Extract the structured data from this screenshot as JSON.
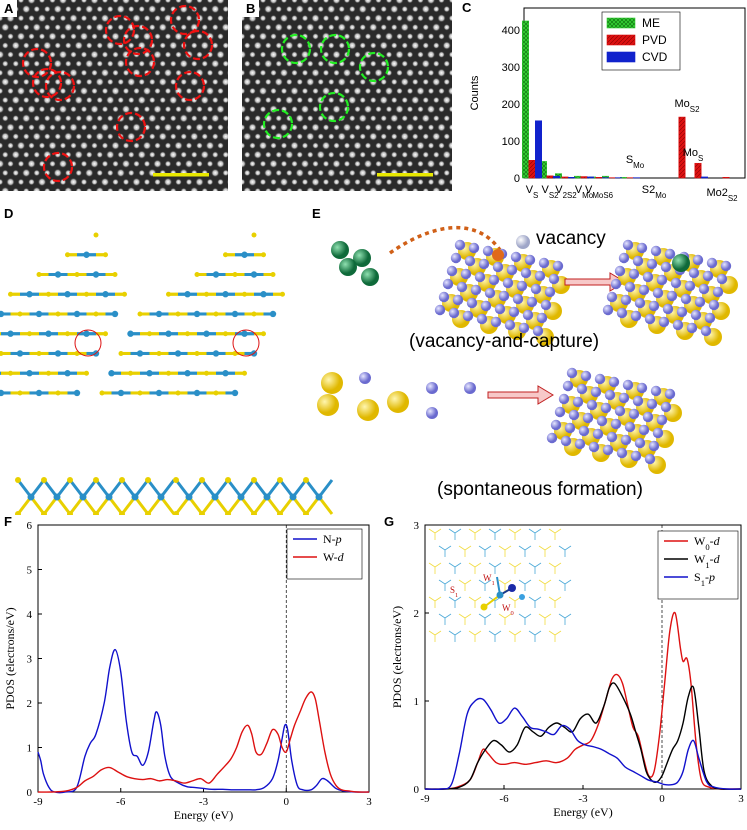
{
  "panels": {
    "A": {
      "label": "A"
    },
    "B": {
      "label": "B"
    },
    "C": {
      "label": "C"
    },
    "D": {
      "label": "D"
    },
    "E": {
      "label": "E"
    },
    "F": {
      "label": "F"
    },
    "G": {
      "label": "G"
    }
  },
  "panelE": {
    "vacancy_label": "vacancy",
    "capture_caption": "(vacancy-and-capture)",
    "formation_caption": "(spontaneous formation)"
  },
  "colors": {
    "ME": "#33cc33",
    "PVD": "#dd1111",
    "CVD": "#1122cc",
    "np": "#1111cc",
    "wd": "#dd1111",
    "w1d": "#000000",
    "s1p": "#1111cc"
  },
  "chart_data": [
    {
      "id": "C",
      "type": "bar",
      "ylabel": "Counts",
      "ylim": [
        0,
        460
      ],
      "yticks": [
        0,
        100,
        200,
        300,
        400
      ],
      "categories": [
        "VS",
        "VS2",
        "V2S2",
        "VMo",
        "VMoS6",
        "SMo",
        "S2Mo",
        "MoS2",
        "MoS",
        "Mo2S2"
      ],
      "category_labels": [
        {
          "base": "V",
          "sub": "S"
        },
        {
          "base": "V",
          "sub": "S2"
        },
        {
          "base": "V",
          "sub": "2S2"
        },
        {
          "base": "V",
          "sub": "Mo"
        },
        {
          "base": "V",
          "sub": "MoS6"
        },
        {
          "base": "S",
          "sub": "Mo"
        },
        {
          "base": "S2",
          "sub": "Mo"
        },
        {
          "base": "Mo",
          "sub": "S2"
        },
        {
          "base": "Mo",
          "sub": "S"
        },
        {
          "base": "Mo2",
          "sub": "S2"
        }
      ],
      "series": [
        {
          "name": "ME",
          "values": [
            425,
            45,
            12,
            5,
            3,
            5,
            2,
            0,
            0,
            0
          ]
        },
        {
          "name": "PVD",
          "values": [
            48,
            6,
            3,
            4,
            2,
            1,
            1,
            165,
            40,
            2
          ]
        },
        {
          "name": "CVD",
          "values": [
            155,
            5,
            2,
            3,
            1,
            1,
            1,
            0,
            3,
            0
          ]
        }
      ]
    },
    {
      "id": "F",
      "type": "line",
      "xlabel": "Energy (eV)",
      "ylabel": "PDOS (electrons/eV)",
      "xlim": [
        -9,
        3
      ],
      "ylim": [
        0,
        6
      ],
      "xticks": [
        -9,
        -6,
        -3,
        0,
        3
      ],
      "yticks": [
        0,
        1,
        2,
        3,
        4,
        5,
        6
      ],
      "fermi": 0,
      "legend": [
        {
          "name": "N",
          "orb": "p"
        },
        {
          "name": "W",
          "orb": "d"
        }
      ],
      "series": [
        {
          "name": "N-p",
          "x": [
            -9,
            -8.9,
            -8.8,
            -8.6,
            -8.4,
            -8,
            -7.6,
            -7.3,
            -7.1,
            -6.9,
            -6.6,
            -6.4,
            -6.2,
            -6.0,
            -5.8,
            -5.6,
            -5.4,
            -5.2,
            -5.0,
            -4.8,
            -4.7,
            -4.55,
            -4.4,
            -4.2,
            -3.9,
            -3.6,
            -3.3,
            -3.0,
            -2.7,
            -2.3,
            -2.0,
            -1.7,
            -1.4,
            -1.1,
            -0.8,
            -0.5,
            -0.3,
            -0.15,
            -0.05,
            0.05,
            0.2,
            0.4,
            0.6,
            0.9,
            1.1,
            1.3,
            1.5,
            1.8,
            2.1,
            2.5,
            3
          ],
          "y": [
            0.9,
            0.7,
            0.4,
            0.1,
            0,
            0,
            0.1,
            0.8,
            1.1,
            1.3,
            2.0,
            2.8,
            3.2,
            2.7,
            1.6,
            0.9,
            0.8,
            0.6,
            0.9,
            1.6,
            1.8,
            1.5,
            0.8,
            0.35,
            0.2,
            0.12,
            0.1,
            0.08,
            0.06,
            0.06,
            0.05,
            0.05,
            0.05,
            0.05,
            0.1,
            0.3,
            0.7,
            1.2,
            1.5,
            1.4,
            0.7,
            0.15,
            0.05,
            0.05,
            0.15,
            0.3,
            0.25,
            0.08,
            0.02,
            0,
            0
          ]
        },
        {
          "name": "W-d",
          "x": [
            -9,
            -8.5,
            -8,
            -7.6,
            -7.3,
            -7.0,
            -6.7,
            -6.4,
            -6.1,
            -5.8,
            -5.5,
            -5.2,
            -4.9,
            -4.6,
            -4.3,
            -4.0,
            -3.7,
            -3.4,
            -3.1,
            -2.8,
            -2.5,
            -2.2,
            -2.0,
            -1.8,
            -1.6,
            -1.4,
            -1.25,
            -1.1,
            -0.9,
            -0.7,
            -0.5,
            -0.3,
            -0.15,
            0,
            0.15,
            0.3,
            0.5,
            0.7,
            0.9,
            1.05,
            1.2,
            1.4,
            1.6,
            1.8,
            2.0,
            2.3,
            2.6,
            3
          ],
          "y": [
            0,
            0,
            0.02,
            0.1,
            0.25,
            0.35,
            0.5,
            0.55,
            0.45,
            0.35,
            0.3,
            0.28,
            0.3,
            0.25,
            0.28,
            0.25,
            0.2,
            0.25,
            0.3,
            0.2,
            0.4,
            0.6,
            0.75,
            1.0,
            1.35,
            1.5,
            1.3,
            0.9,
            0.85,
            1.1,
            1.4,
            1.3,
            1.0,
            0.9,
            1.2,
            1.5,
            1.8,
            2.1,
            2.25,
            2.1,
            1.6,
            0.9,
            0.4,
            0.15,
            0.05,
            0.02,
            0,
            0
          ]
        }
      ]
    },
    {
      "id": "G",
      "type": "line",
      "xlabel": "Energy (eV)",
      "ylabel": "PDOS (electrons/eV)",
      "xlim": [
        -9,
        3
      ],
      "ylim": [
        0,
        3
      ],
      "xticks": [
        -9,
        -6,
        -3,
        0,
        3
      ],
      "yticks": [
        0,
        1,
        2,
        3
      ],
      "fermi": 0,
      "legend": [
        {
          "name": "W",
          "sub": "0",
          "orb": "d"
        },
        {
          "name": "W",
          "sub": "1",
          "orb": "d"
        },
        {
          "name": "S",
          "sub": "1",
          "orb": "p"
        }
      ],
      "inset_labels": {
        "w1": "W1",
        "s1": "S1",
        "w0": "W0"
      },
      "series": [
        {
          "name": "W0-d",
          "x": [
            -9,
            -8.3,
            -7.8,
            -7.3,
            -7.0,
            -6.8,
            -6.6,
            -6.3,
            -6.0,
            -5.6,
            -5.2,
            -4.8,
            -4.4,
            -4.0,
            -3.6,
            -3.3,
            -3.0,
            -2.7,
            -2.4,
            -2.1,
            -1.9,
            -1.7,
            -1.5,
            -1.3,
            -1.1,
            -0.9,
            -0.7,
            -0.5,
            -0.3,
            -0.1,
            0.1,
            0.3,
            0.5,
            0.7,
            0.8,
            0.95,
            1.1,
            1.3,
            1.5,
            1.8,
            2.2,
            2.6,
            3
          ],
          "y": [
            0,
            0,
            0.02,
            0.1,
            0.3,
            0.45,
            0.4,
            0.3,
            0.28,
            0.3,
            0.28,
            0.3,
            0.32,
            0.3,
            0.35,
            0.45,
            0.5,
            0.55,
            0.75,
            1.05,
            1.25,
            1.3,
            1.2,
            0.95,
            0.7,
            0.6,
            0.35,
            0.15,
            0.2,
            0.6,
            1.2,
            1.8,
            2.0,
            1.6,
            1.45,
            1.48,
            1.2,
            0.5,
            0.1,
            0.02,
            0,
            0,
            0
          ]
        },
        {
          "name": "W1-d",
          "x": [
            -9,
            -8.2,
            -7.7,
            -7.3,
            -7.0,
            -6.7,
            -6.4,
            -6.1,
            -5.8,
            -5.5,
            -5.2,
            -4.9,
            -4.6,
            -4.3,
            -4.0,
            -3.7,
            -3.4,
            -3.1,
            -2.8,
            -2.5,
            -2.2,
            -2.0,
            -1.8,
            -1.5,
            -1.2,
            -1.0,
            -0.8,
            -0.6,
            -0.4,
            -0.2,
            0,
            0.2,
            0.4,
            0.6,
            0.8,
            1.0,
            1.2,
            1.4,
            1.6,
            1.9,
            2.3,
            3
          ],
          "y": [
            0,
            0,
            0.02,
            0.1,
            0.3,
            0.45,
            0.55,
            0.5,
            0.42,
            0.5,
            0.7,
            0.65,
            0.6,
            0.7,
            0.75,
            0.7,
            0.65,
            0.8,
            0.85,
            0.75,
            0.95,
            1.15,
            1.2,
            1.05,
            0.85,
            0.65,
            0.45,
            0.2,
            0.1,
            0.08,
            0.15,
            0.3,
            0.45,
            0.55,
            0.75,
            1.05,
            1.15,
            0.7,
            0.2,
            0.03,
            0,
            0
          ]
        },
        {
          "name": "S1-p",
          "x": [
            -9,
            -8.4,
            -8.0,
            -7.7,
            -7.4,
            -7.1,
            -6.8,
            -6.5,
            -6.2,
            -5.9,
            -5.6,
            -5.3,
            -5.0,
            -4.7,
            -4.4,
            -4.1,
            -3.8,
            -3.5,
            -3.2,
            -2.9,
            -2.6,
            -2.3,
            -2.0,
            -1.7,
            -1.4,
            -1.1,
            -0.8,
            -0.5,
            -0.2,
            0.1,
            0.4,
            0.6,
            0.8,
            1.0,
            1.2,
            1.4,
            1.7,
            2.0,
            2.5,
            3
          ],
          "y": [
            0,
            0,
            0.05,
            0.4,
            0.85,
            1.0,
            1.02,
            0.9,
            0.75,
            0.8,
            0.92,
            0.82,
            0.7,
            0.68,
            0.65,
            0.62,
            0.72,
            0.68,
            0.55,
            0.5,
            0.48,
            0.45,
            0.4,
            0.35,
            0.25,
            0.2,
            0.15,
            0.1,
            0.08,
            0.05,
            0.05,
            0.08,
            0.2,
            0.45,
            0.55,
            0.35,
            0.08,
            0.02,
            0,
            0
          ]
        }
      ]
    }
  ]
}
